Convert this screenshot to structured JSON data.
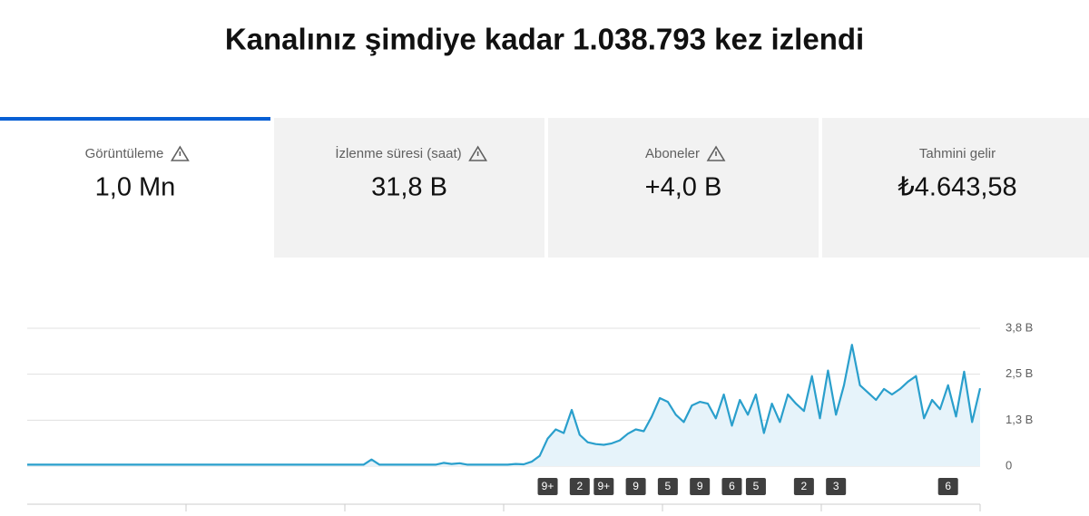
{
  "header": {
    "title": "Kanalınız şimdiye kadar 1.038.793 kez izlendi"
  },
  "tabs": [
    {
      "label": "Görüntüleme",
      "value": "1,0 Mn",
      "warning": true,
      "selected": true
    },
    {
      "label": "İzlenme süresi (saat)",
      "value": "31,8 B",
      "warning": true,
      "selected": false
    },
    {
      "label": "Aboneler",
      "value": "+4,0 B",
      "warning": true,
      "selected": false
    },
    {
      "label": "Tahmini gelir",
      "value": "₺4.643,58",
      "warning": false,
      "selected": false
    }
  ],
  "chart_data": {
    "type": "area",
    "color": "#2a9fcc",
    "fill": "#e6f3fa",
    "ylim": [
      0,
      3750
    ],
    "yticks": [
      0,
      {
        "value": 1250,
        "label": "1,3 B"
      },
      {
        "value": 2500,
        "label": "2,5 B"
      },
      {
        "value": 3750,
        "label": "3,8 B"
      }
    ],
    "grid": true,
    "values": [
      40,
      40,
      40,
      40,
      40,
      40,
      40,
      40,
      40,
      40,
      40,
      40,
      40,
      40,
      40,
      40,
      40,
      40,
      40,
      40,
      40,
      40,
      40,
      40,
      40,
      40,
      40,
      40,
      40,
      40,
      40,
      40,
      40,
      40,
      40,
      40,
      40,
      40,
      40,
      40,
      40,
      40,
      40,
      180,
      40,
      40,
      40,
      40,
      40,
      40,
      40,
      40,
      90,
      60,
      80,
      40,
      40,
      40,
      40,
      40,
      40,
      60,
      50,
      120,
      280,
      750,
      1000,
      900,
      1530,
      850,
      650,
      600,
      580,
      620,
      700,
      880,
      1000,
      950,
      1350,
      1850,
      1750,
      1400,
      1200,
      1650,
      1750,
      1700,
      1300,
      1950,
      1100,
      1800,
      1400,
      1950,
      900,
      1700,
      1200,
      1950,
      1700,
      1500,
      2450,
      1300,
      2600,
      1400,
      2200,
      3300,
      2200,
      2000,
      1800,
      2100,
      1950,
      2100,
      2300,
      2450,
      1300,
      1800,
      1550,
      2200,
      1350,
      2570,
      1200,
      2120
    ],
    "markers": [
      null,
      null,
      null,
      null,
      null,
      null,
      null,
      null,
      null,
      null,
      null,
      null,
      null,
      null,
      null,
      null,
      null,
      null,
      null,
      null,
      null,
      null,
      null,
      null,
      null,
      null,
      null,
      null,
      null,
      null,
      null,
      null,
      null,
      null,
      null,
      null,
      null,
      null,
      null,
      null,
      null,
      null,
      null,
      null,
      null,
      null,
      null,
      null,
      null,
      null,
      null,
      null,
      null,
      null,
      null,
      null,
      null,
      null,
      null,
      null,
      null,
      null,
      null,
      null,
      null,
      "9+",
      null,
      null,
      null,
      "2",
      null,
      null,
      "9+",
      null,
      null,
      null,
      "9",
      null,
      null,
      null,
      "5",
      null,
      null,
      null,
      "9",
      null,
      null,
      null,
      "6",
      null,
      null,
      "5",
      null,
      null,
      null,
      null,
      null,
      "2",
      null,
      null,
      null,
      "3",
      null,
      null,
      null,
      null,
      null,
      null,
      null,
      null,
      null,
      null,
      null,
      null,
      null,
      "6",
      null,
      null,
      null,
      null
    ]
  }
}
